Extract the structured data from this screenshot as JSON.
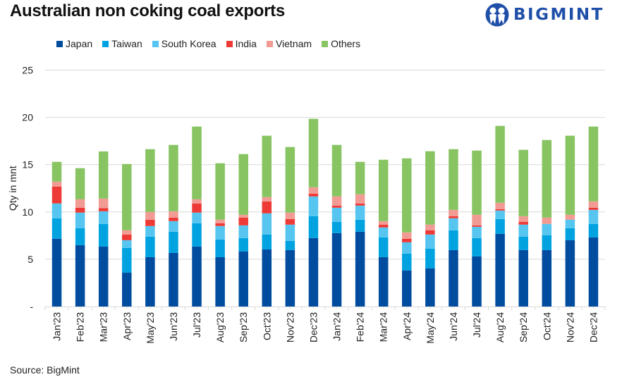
{
  "header": {
    "title": "Australian non coking coal exports",
    "logo_text": "BIGMINT",
    "logo_icon": "bigmint-people-logo-icon",
    "logo_color": "#1f4fa8"
  },
  "footer": {
    "source": "Source: BigMint"
  },
  "chart_data": {
    "type": "bar",
    "stacked": true,
    "title": "Australian non coking coal exports",
    "xlabel": "",
    "ylabel": "Qty in mnt",
    "ylim": [
      0,
      25
    ],
    "yticks": [
      0,
      5,
      10,
      15,
      20,
      25
    ],
    "ytick_labels": [
      "-",
      "5",
      "10",
      "15",
      "20",
      "25"
    ],
    "grid": true,
    "legend_position": "top-left",
    "categories": [
      "Jan'23",
      "Feb'23",
      "Mar'23",
      "Apr'23",
      "May'23",
      "Jun'23",
      "Jul'23",
      "Aug'23",
      "Sep'23",
      "Oct'23",
      "Nov'23",
      "Dec'23",
      "Jan'24",
      "Feb'24",
      "Mar'24",
      "Apr'24",
      "May'24",
      "Jun'24",
      "Jul'24",
      "Aug'24",
      "Sep'24",
      "Oct'24",
      "Nov'24",
      "Dec'24"
    ],
    "series": [
      {
        "name": "Japan",
        "color": "#004c9f",
        "values": [
          7.16,
          6.49,
          6.34,
          3.58,
          5.22,
          5.67,
          6.34,
          5.22,
          5.82,
          6.04,
          5.97,
          7.24,
          7.76,
          7.91,
          5.22,
          3.81,
          4.03,
          5.97,
          5.3,
          7.69,
          5.97,
          5.97,
          7.01,
          7.31
        ]
      },
      {
        "name": "Taiwan",
        "color": "#00a3e0",
        "values": [
          2.17,
          1.79,
          2.39,
          2.61,
          2.17,
          2.24,
          2.47,
          1.87,
          1.42,
          1.57,
          0.97,
          2.31,
          1.2,
          1.27,
          2.09,
          1.79,
          2.09,
          2.09,
          1.94,
          1.56,
          1.42,
          1.57,
          1.27,
          1.42
        ]
      },
      {
        "name": "South Korea",
        "color": "#56c5f0",
        "values": [
          1.57,
          1.65,
          1.34,
          0.82,
          1.12,
          1.12,
          1.12,
          1.42,
          1.34,
          2.24,
          1.72,
          2.09,
          1.49,
          1.49,
          1.05,
          1.19,
          1.49,
          1.27,
          1.19,
          0.9,
          1.27,
          1.19,
          0.9,
          1.49
        ]
      },
      {
        "name": "India",
        "color": "#ee3a36",
        "values": [
          1.79,
          0.52,
          0.33,
          0.6,
          0.67,
          0.37,
          0.97,
          0.3,
          0.82,
          1.27,
          0.59,
          0.3,
          0.22,
          0.23,
          0.3,
          0.37,
          0.45,
          0.22,
          0.15,
          0.15,
          0.3,
          0.0,
          0.0,
          0.23
        ]
      },
      {
        "name": "Vietnam",
        "color": "#f29b94",
        "values": [
          0.51,
          0.89,
          1.02,
          0.45,
          0.82,
          0.67,
          0.44,
          0.37,
          0.3,
          0.45,
          0.68,
          0.67,
          0.97,
          0.97,
          0.37,
          0.68,
          0.6,
          0.67,
          1.12,
          0.67,
          0.59,
          0.67,
          0.52,
          0.67
        ]
      },
      {
        "name": "Others",
        "color": "#88c462",
        "values": [
          2.1,
          3.29,
          4.98,
          7.01,
          6.64,
          7.02,
          7.69,
          5.97,
          6.42,
          6.49,
          6.94,
          7.24,
          5.45,
          3.43,
          6.49,
          7.83,
          7.76,
          6.42,
          6.79,
          8.13,
          7.02,
          8.21,
          8.36,
          7.91
        ]
      }
    ]
  }
}
